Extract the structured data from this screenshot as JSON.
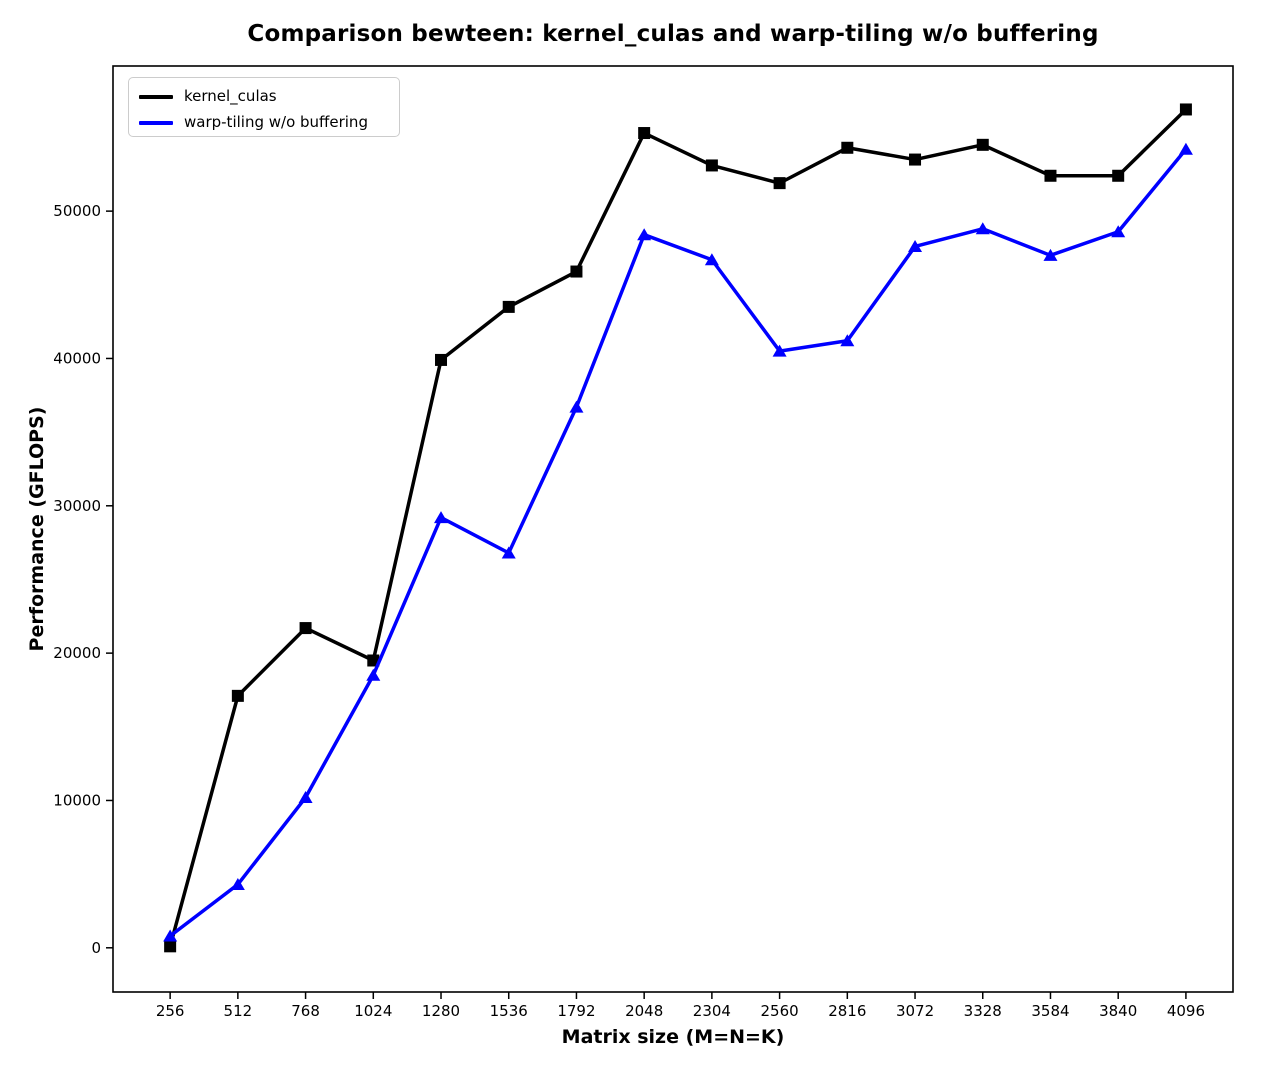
{
  "chart_data": {
    "type": "line",
    "title": "Comparison bewteen: kernel_culas and warp-tiling w/o buffering",
    "xlabel": "Matrix size (M=N=K)",
    "ylabel": "Performance (GFLOPS)",
    "x": [
      256,
      512,
      768,
      1024,
      1280,
      1536,
      1792,
      2048,
      2304,
      2560,
      2816,
      3072,
      3328,
      3584,
      3840,
      4096
    ],
    "series": [
      {
        "name": "kernel_culas",
        "color": "#000000",
        "marker": "square",
        "values": [
          100,
          17100,
          21700,
          19500,
          39900,
          43500,
          45900,
          55300,
          53100,
          51900,
          54300,
          53500,
          54500,
          52400,
          52400,
          56900
        ]
      },
      {
        "name": "warp-tiling w/o buffering",
        "color": "#0000ff",
        "marker": "triangle",
        "values": [
          800,
          4300,
          10200,
          18500,
          29200,
          26800,
          36700,
          48400,
          46700,
          40500,
          41200,
          47600,
          48800,
          47000,
          48600,
          54200
        ]
      }
    ],
    "yticks": [
      0,
      10000,
      20000,
      30000,
      40000,
      50000
    ],
    "xlim": [
      40,
      4274
    ],
    "ylim": [
      -3000,
      59850
    ],
    "grid": false,
    "legend_position": "upper left",
    "axis_color": "#000000",
    "background": "#ffffff"
  }
}
